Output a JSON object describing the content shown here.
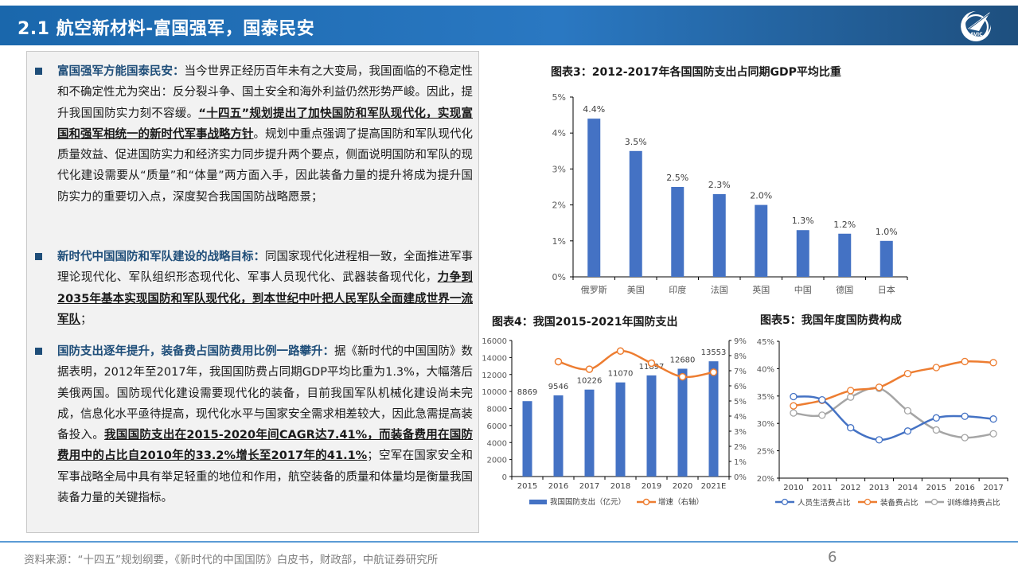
{
  "header": {
    "title": "2.1 航空新材料-富国强军，国泰民安",
    "logo_text": "AVIC"
  },
  "content": {
    "paragraphs": [
      {
        "lead": "富国强军方能国泰民安：",
        "text1": "当今世界正经历百年未有之大变局，我国面临的不稳定性和不确定性尤为突出：反分裂斗争、国土安全和海外利益仍然形势严峻。因此，提升我国国防实力刻不容缓。",
        "emphasis": "“十四五”规划提出了加快国防和军队现代化，实现富国和强军相统一的新时代军事战略方针",
        "text2": "。规划中重点强调了提高国防和军队现代化质量效益、促进国防实力和经济实力同步提升两个要点，侧面说明国防和军队的现代化建设需要从“质量”和“体量”两方面入手，因此装备力量的提升将成为提升国防实力的重要切入点，深度契合我国国防战略愿景；"
      },
      {
        "lead": "新时代中国国防和军队建设的战略目标：",
        "text1": "同国家现代化进程相一致，全面推进军事理论现代化、军队组织形态现代化、军事人员现代化、武器装备现代化，",
        "emphasis": "力争到2035年基本实现国防和军队现代化，到本世纪中叶把人民军队全面建成世界一流军队",
        "text2": "；"
      },
      {
        "lead": "国防支出逐年提升，装备费占国防费用比例一路攀升：",
        "text1": "据《新时代的中国国防》数据表明，2012年至2017年，我国国防费占同期GDP平均比重为1.3%，大幅落后美俄两国。国防现代化建设需要现代化的装备，目前我国军队机械化建设尚未完成，信息化水平亟待提高，现代化水平与国家安全需求相差较大，因此急需提高装备投入。",
        "emphasis": "我国国防支出在2015-2020年间CAGR达7.41%，而装备费用在国防费用中的占比自2010年的33.2%增长至2017年的41.1%",
        "text2": "；空军在国家安全和军事战略全局中具有举足轻重的地位和作用，航空装备的质量和体量均是衡量我国装备力量的关键指标。"
      }
    ]
  },
  "footer": {
    "source": "资料来源：“十四五”规划纲要，《新时代的中国国防》白皮书，财政部，中航证券研究所",
    "page_number": "6"
  },
  "colors": {
    "header_blue": "#2a78c2",
    "bar_blue": "#4472c4",
    "orange": "#ed7d31",
    "gray": "#a5a5a5",
    "lead_blue": "#1f4e79"
  },
  "chart_data": [
    {
      "id": "chart3",
      "type": "bar",
      "title": "图表3：2012-2017年各国国防支出占同期GDP平均比重",
      "categories": [
        "俄罗斯",
        "美国",
        "印度",
        "法国",
        "英国",
        "中国",
        "德国",
        "日本"
      ],
      "values": [
        4.4,
        3.5,
        2.5,
        2.3,
        2.0,
        1.3,
        1.2,
        1.0
      ],
      "value_labels": [
        "4.4%",
        "3.5%",
        "2.5%",
        "2.3%",
        "2.0%",
        "1.3%",
        "1.2%",
        "1.0%"
      ],
      "xlabel": "",
      "ylabel": "",
      "ylim": [
        0,
        5
      ],
      "yticks": [
        "0%",
        "1%",
        "2%",
        "3%",
        "4%",
        "5%"
      ],
      "grid": false,
      "legend": null
    },
    {
      "id": "chart4",
      "type": "bar+line",
      "title": "图表4：我国2015-2021年国防支出",
      "categories": [
        "2015",
        "2016",
        "2017",
        "2018",
        "2019",
        "2020",
        "2021E"
      ],
      "series": [
        {
          "name": "我国国防支出（亿元）",
          "type": "bar",
          "axis": "left",
          "values": [
            8869,
            9546,
            10226,
            11070,
            11897,
            12680,
            13553
          ]
        },
        {
          "name": "增速（右轴）",
          "type": "line",
          "axis": "right",
          "values": [
            null,
            7.6,
            7.1,
            8.3,
            7.5,
            6.6,
            6.9
          ]
        }
      ],
      "ylim_left": [
        0,
        16000
      ],
      "yticks_left": [
        "0",
        "2000",
        "4000",
        "6000",
        "8000",
        "10000",
        "12000",
        "14000",
        "16000"
      ],
      "ylim_right": [
        0,
        9
      ],
      "yticks_right": [
        "0%",
        "1%",
        "2%",
        "3%",
        "4%",
        "5%",
        "6%",
        "7%",
        "8%",
        "9%"
      ],
      "legend_position": "bottom"
    },
    {
      "id": "chart5",
      "type": "line",
      "title": "图表5：我国年度国防费构成",
      "x": [
        "2010",
        "2011",
        "2012",
        "2013",
        "2014",
        "2015",
        "2016",
        "2017"
      ],
      "series": [
        {
          "name": "人员生活费占比",
          "values": [
            34.9,
            34.3,
            29.2,
            27.0,
            28.6,
            31.0,
            31.3,
            30.8
          ]
        },
        {
          "name": "装备费占比",
          "values": [
            33.2,
            34.2,
            36.0,
            36.6,
            39.1,
            40.2,
            41.3,
            41.1
          ]
        },
        {
          "name": "训练维持费占比",
          "values": [
            31.9,
            31.5,
            34.8,
            36.4,
            32.3,
            28.8,
            27.4,
            28.1
          ]
        }
      ],
      "ylim": [
        20,
        45
      ],
      "yticks": [
        "20%",
        "25%",
        "30%",
        "35%",
        "40%",
        "45%"
      ],
      "legend_position": "bottom"
    }
  ]
}
